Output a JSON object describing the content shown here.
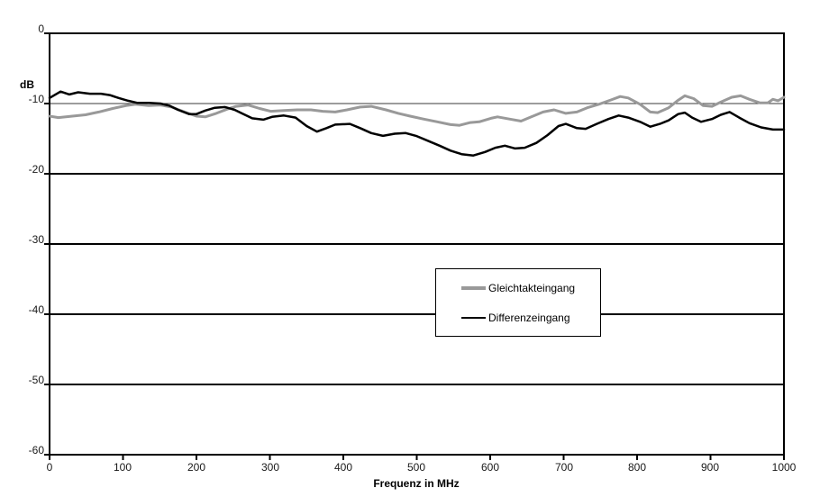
{
  "chart_data": {
    "type": "line",
    "title": "",
    "xlabel": "Frequenz in MHz",
    "ylabel": "dB",
    "xlim": [
      0,
      1000
    ],
    "ylim": [
      -60,
      0
    ],
    "xticks": [
      0,
      100,
      200,
      300,
      400,
      500,
      600,
      700,
      800,
      900,
      1000
    ],
    "yticks": [
      0,
      -10,
      -20,
      -30,
      -40,
      -50,
      -60
    ],
    "grid": "horizontal",
    "legend_position": "center",
    "frame_color": "#000000",
    "minor_grid_color": "#3a3a3a",
    "series": [
      {
        "name": "Gleichtakteingang",
        "color": "#999999",
        "width": 3,
        "points": [
          [
            0,
            -11.8
          ],
          [
            12,
            -12.0
          ],
          [
            31,
            -11.8
          ],
          [
            49,
            -11.6
          ],
          [
            67,
            -11.2
          ],
          [
            86,
            -10.7
          ],
          [
            104,
            -10.3
          ],
          [
            117,
            -10.1
          ],
          [
            135,
            -10.3
          ],
          [
            151,
            -10.2
          ],
          [
            166,
            -10.5
          ],
          [
            184,
            -11.2
          ],
          [
            200,
            -11.8
          ],
          [
            212,
            -11.9
          ],
          [
            227,
            -11.4
          ],
          [
            242,
            -10.8
          ],
          [
            254,
            -10.4
          ],
          [
            270,
            -10.2
          ],
          [
            286,
            -10.7
          ],
          [
            301,
            -11.1
          ],
          [
            319,
            -11.0
          ],
          [
            337,
            -10.9
          ],
          [
            356,
            -10.9
          ],
          [
            372,
            -11.1
          ],
          [
            389,
            -11.2
          ],
          [
            405,
            -10.9
          ],
          [
            423,
            -10.5
          ],
          [
            438,
            -10.4
          ],
          [
            458,
            -10.9
          ],
          [
            475,
            -11.4
          ],
          [
            491,
            -11.8
          ],
          [
            509,
            -12.2
          ],
          [
            528,
            -12.6
          ],
          [
            546,
            -13.0
          ],
          [
            558,
            -13.1
          ],
          [
            573,
            -12.7
          ],
          [
            585,
            -12.6
          ],
          [
            601,
            -12.1
          ],
          [
            610,
            -11.9
          ],
          [
            626,
            -12.2
          ],
          [
            642,
            -12.5
          ],
          [
            656,
            -11.9
          ],
          [
            672,
            -11.2
          ],
          [
            687,
            -10.9
          ],
          [
            703,
            -11.4
          ],
          [
            718,
            -11.2
          ],
          [
            732,
            -10.6
          ],
          [
            748,
            -10.1
          ],
          [
            764,
            -9.5
          ],
          [
            777,
            -9.0
          ],
          [
            788,
            -9.2
          ],
          [
            804,
            -10.1
          ],
          [
            818,
            -11.2
          ],
          [
            828,
            -11.3
          ],
          [
            843,
            -10.6
          ],
          [
            855,
            -9.6
          ],
          [
            865,
            -8.9
          ],
          [
            877,
            -9.3
          ],
          [
            890,
            -10.3
          ],
          [
            902,
            -10.4
          ],
          [
            914,
            -9.8
          ],
          [
            929,
            -9.1
          ],
          [
            941,
            -8.9
          ],
          [
            953,
            -9.4
          ],
          [
            967,
            -9.9
          ],
          [
            978,
            -9.9
          ],
          [
            985,
            -9.4
          ],
          [
            992,
            -9.6
          ],
          [
            1000,
            -9.1
          ]
        ]
      },
      {
        "name": "Differenzeingang",
        "color": "#000000",
        "width": 2.5,
        "points": [
          [
            0,
            -9.2
          ],
          [
            15,
            -8.3
          ],
          [
            27,
            -8.7
          ],
          [
            39,
            -8.4
          ],
          [
            55,
            -8.6
          ],
          [
            70,
            -8.6
          ],
          [
            82,
            -8.8
          ],
          [
            94,
            -9.2
          ],
          [
            107,
            -9.6
          ],
          [
            119,
            -9.9
          ],
          [
            135,
            -9.9
          ],
          [
            151,
            -10.0
          ],
          [
            163,
            -10.3
          ],
          [
            175,
            -10.9
          ],
          [
            190,
            -11.5
          ],
          [
            200,
            -11.5
          ],
          [
            212,
            -11.0
          ],
          [
            225,
            -10.6
          ],
          [
            239,
            -10.5
          ],
          [
            252,
            -10.9
          ],
          [
            264,
            -11.5
          ],
          [
            276,
            -12.1
          ],
          [
            291,
            -12.3
          ],
          [
            303,
            -11.9
          ],
          [
            319,
            -11.7
          ],
          [
            335,
            -12.0
          ],
          [
            350,
            -13.2
          ],
          [
            364,
            -14.0
          ],
          [
            377,
            -13.5
          ],
          [
            389,
            -13.0
          ],
          [
            409,
            -12.9
          ],
          [
            423,
            -13.5
          ],
          [
            438,
            -14.2
          ],
          [
            454,
            -14.6
          ],
          [
            470,
            -14.3
          ],
          [
            485,
            -14.2
          ],
          [
            499,
            -14.6
          ],
          [
            515,
            -15.3
          ],
          [
            531,
            -16.0
          ],
          [
            546,
            -16.7
          ],
          [
            561,
            -17.2
          ],
          [
            577,
            -17.4
          ],
          [
            593,
            -16.9
          ],
          [
            607,
            -16.3
          ],
          [
            620,
            -16.0
          ],
          [
            634,
            -16.4
          ],
          [
            647,
            -16.3
          ],
          [
            663,
            -15.6
          ],
          [
            678,
            -14.5
          ],
          [
            693,
            -13.2
          ],
          [
            703,
            -12.9
          ],
          [
            718,
            -13.5
          ],
          [
            730,
            -13.6
          ],
          [
            745,
            -12.9
          ],
          [
            761,
            -12.2
          ],
          [
            775,
            -11.7
          ],
          [
            788,
            -12.0
          ],
          [
            804,
            -12.6
          ],
          [
            818,
            -13.3
          ],
          [
            831,
            -12.9
          ],
          [
            843,
            -12.4
          ],
          [
            856,
            -11.5
          ],
          [
            865,
            -11.3
          ],
          [
            875,
            -12.0
          ],
          [
            887,
            -12.6
          ],
          [
            902,
            -12.2
          ],
          [
            914,
            -11.6
          ],
          [
            926,
            -11.2
          ],
          [
            939,
            -12.0
          ],
          [
            953,
            -12.8
          ],
          [
            969,
            -13.4
          ],
          [
            985,
            -13.7
          ],
          [
            1000,
            -13.7
          ]
        ]
      }
    ]
  }
}
